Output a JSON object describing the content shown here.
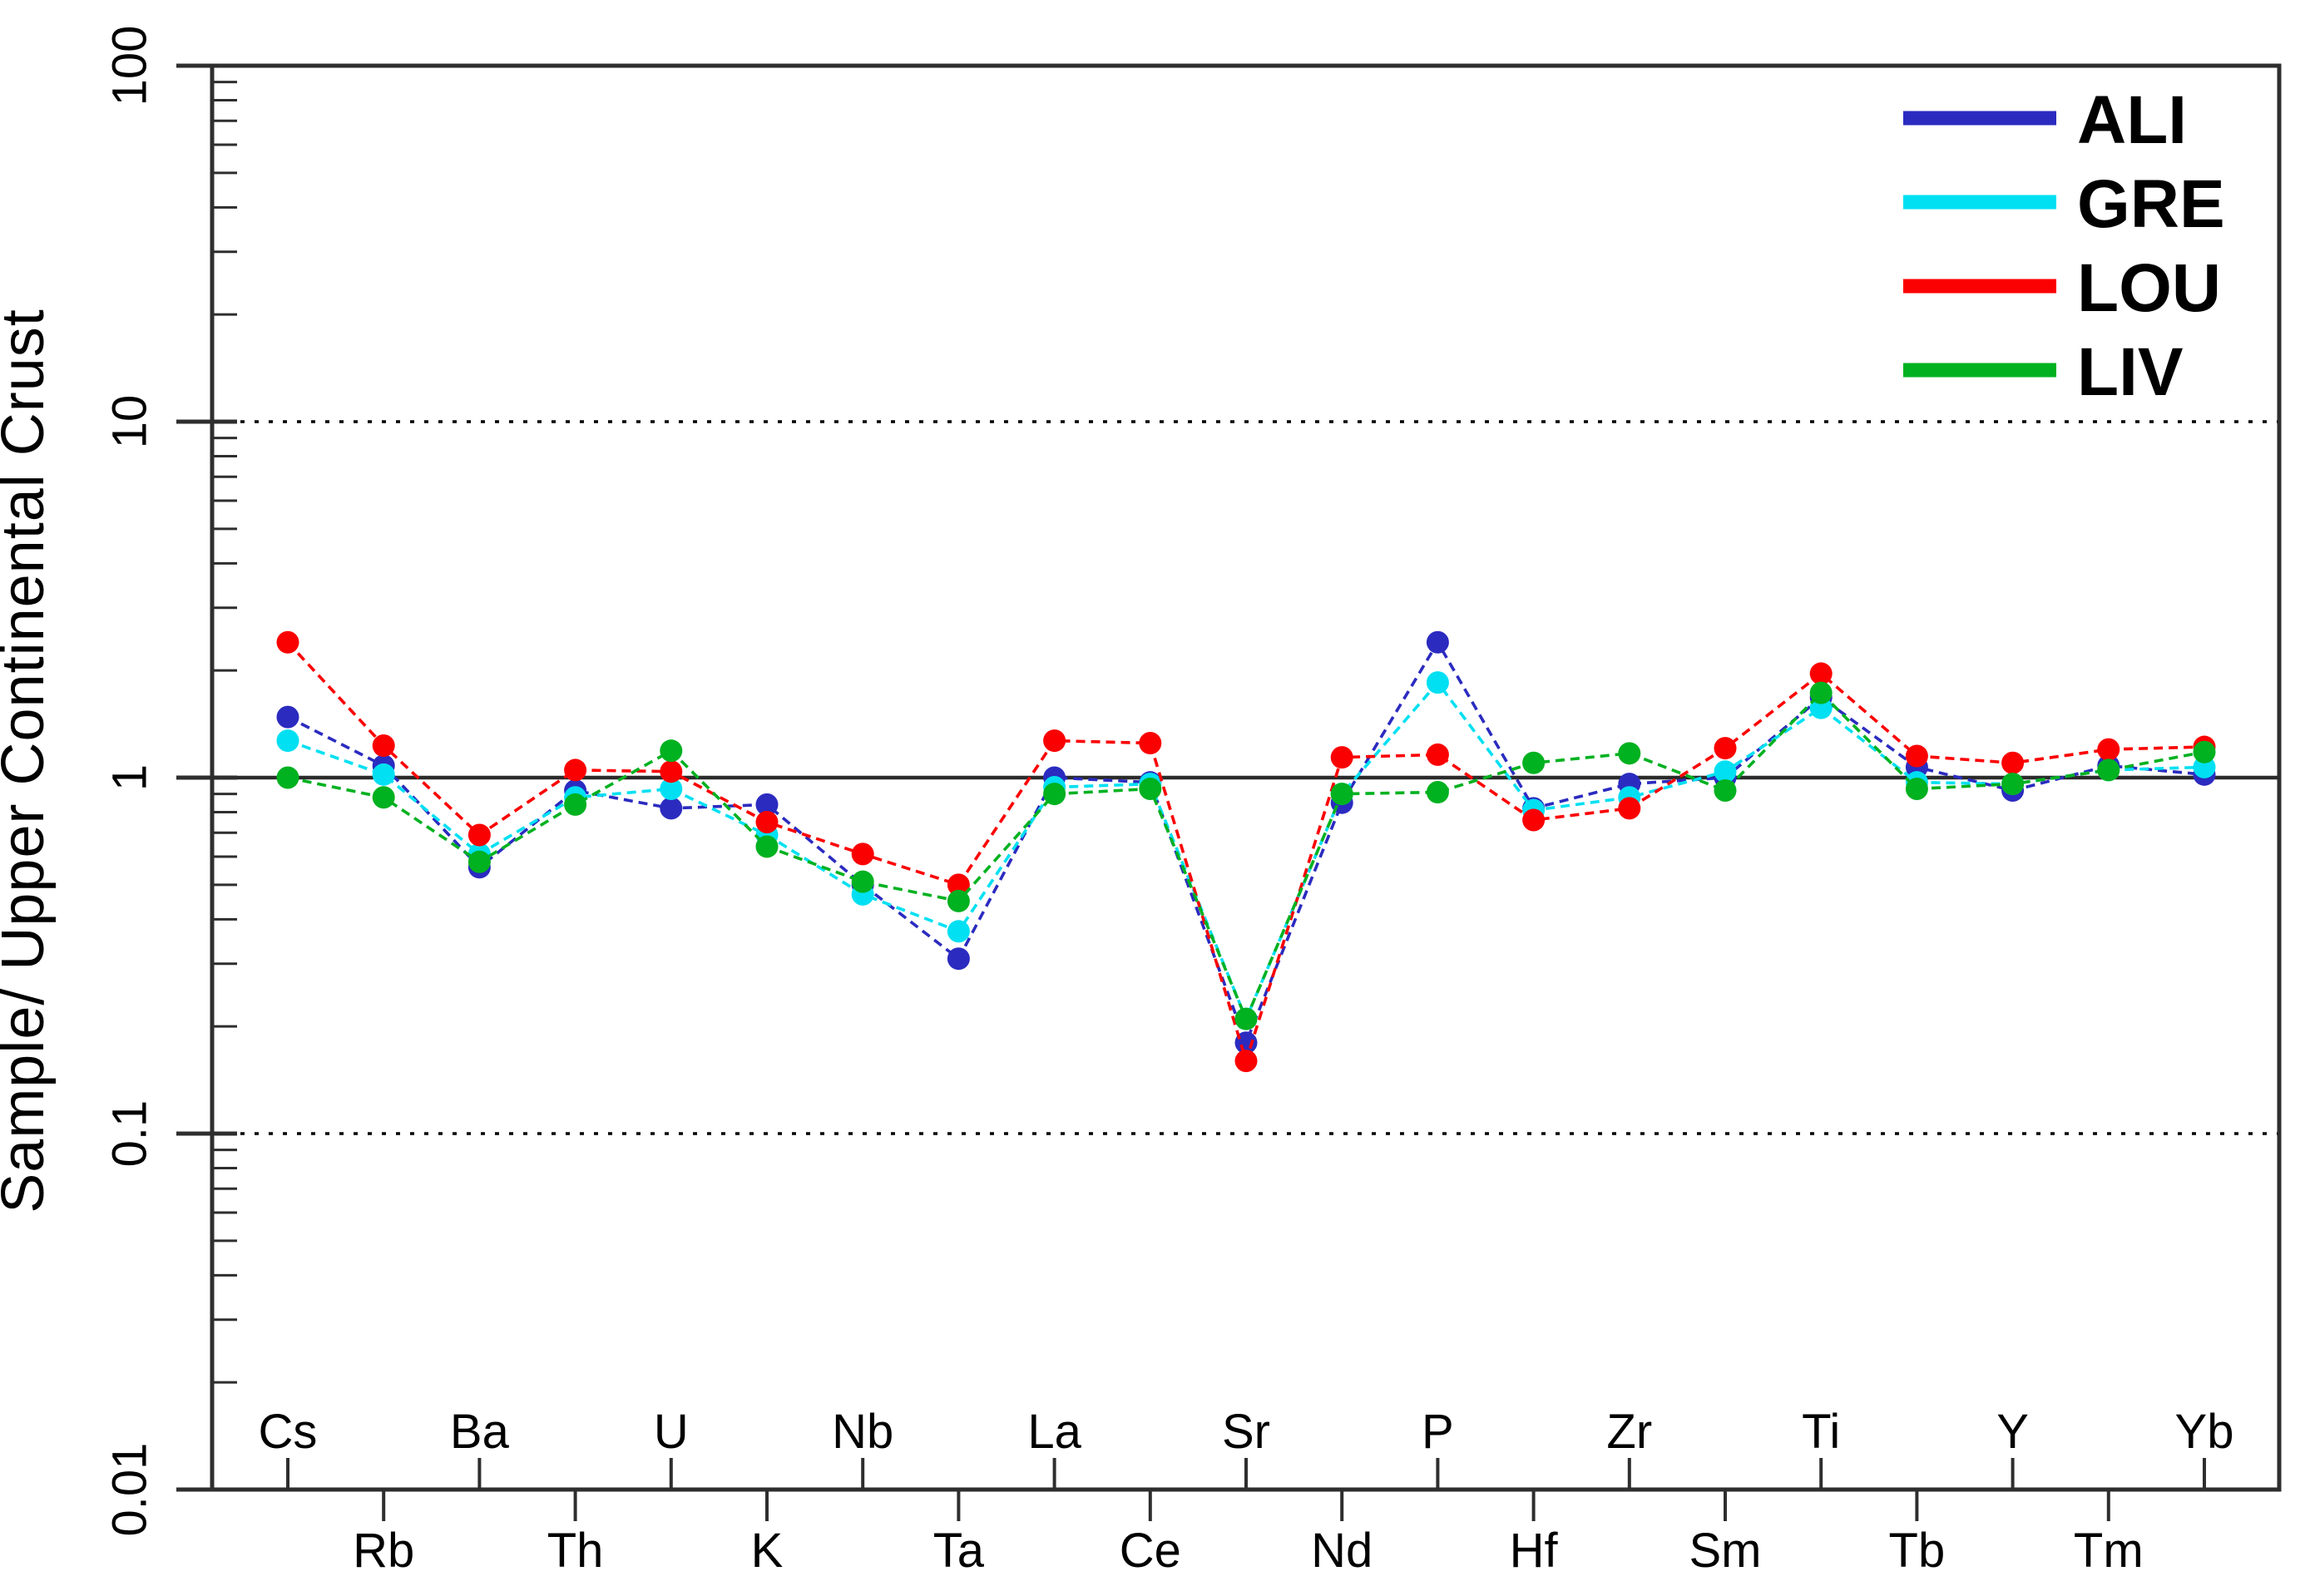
{
  "chart_data": {
    "type": "line",
    "title": "",
    "xlabel": "",
    "ylabel": "Sample/ Upper Continental Crust",
    "log_scale_y": true,
    "ylim": [
      0.01,
      100
    ],
    "y_ticks": [
      {
        "label": "100",
        "value": 100
      },
      {
        "label": "10",
        "value": 10
      },
      {
        "label": "1",
        "value": 1
      },
      {
        "label": "0.1",
        "value": 0.1
      },
      {
        "label": "0.01",
        "value": 0.01
      }
    ],
    "reference_lines": {
      "solid": [
        1
      ],
      "dotted": [
        10,
        0.1
      ]
    },
    "grid": "horizontal-decades-only",
    "categories": [
      "Cs",
      "Rb",
      "Ba",
      "Th",
      "U",
      "K",
      "Nb",
      "Ta",
      "La",
      "Ce",
      "Sr",
      "Nd",
      "P",
      "Hf",
      "Zr",
      "Sm",
      "Ti",
      "Tb",
      "Y",
      "Tm",
      "Yb"
    ],
    "x_label_rows": "alternating (even indices above axis, odd indices below axis)",
    "series": [
      {
        "name": "ALI",
        "color": "#2B2BC0",
        "values": [
          1.48,
          1.08,
          0.56,
          0.92,
          0.82,
          0.84,
          0.5,
          0.31,
          1.0,
          0.97,
          0.18,
          0.85,
          2.4,
          0.82,
          0.96,
          1.0,
          1.68,
          1.07,
          0.92,
          1.08,
          1.02
        ]
      },
      {
        "name": "GRE",
        "color": "#00E0F2",
        "values": [
          1.27,
          1.02,
          0.61,
          0.88,
          0.93,
          0.69,
          0.47,
          0.37,
          0.94,
          0.96,
          0.21,
          0.9,
          1.85,
          0.81,
          0.88,
          1.04,
          1.57,
          0.97,
          0.96,
          1.05,
          1.07
        ]
      },
      {
        "name": "LOU",
        "color": "#FB0000",
        "values": [
          2.4,
          1.23,
          0.69,
          1.05,
          1.04,
          0.75,
          0.61,
          0.5,
          1.27,
          1.25,
          0.16,
          1.14,
          1.16,
          0.76,
          0.82,
          1.21,
          1.96,
          1.15,
          1.1,
          1.2,
          1.22
        ]
      },
      {
        "name": "LIV",
        "color": "#00B120",
        "values": [
          1.0,
          0.88,
          0.58,
          0.84,
          1.19,
          0.64,
          0.51,
          0.45,
          0.9,
          0.93,
          0.21,
          0.9,
          0.91,
          1.1,
          1.17,
          0.92,
          1.73,
          0.93,
          0.96,
          1.05,
          1.18
        ]
      }
    ],
    "legend": {
      "position": "top-right",
      "entries": [
        "ALI",
        "GRE",
        "LOU",
        "LIV"
      ]
    }
  }
}
